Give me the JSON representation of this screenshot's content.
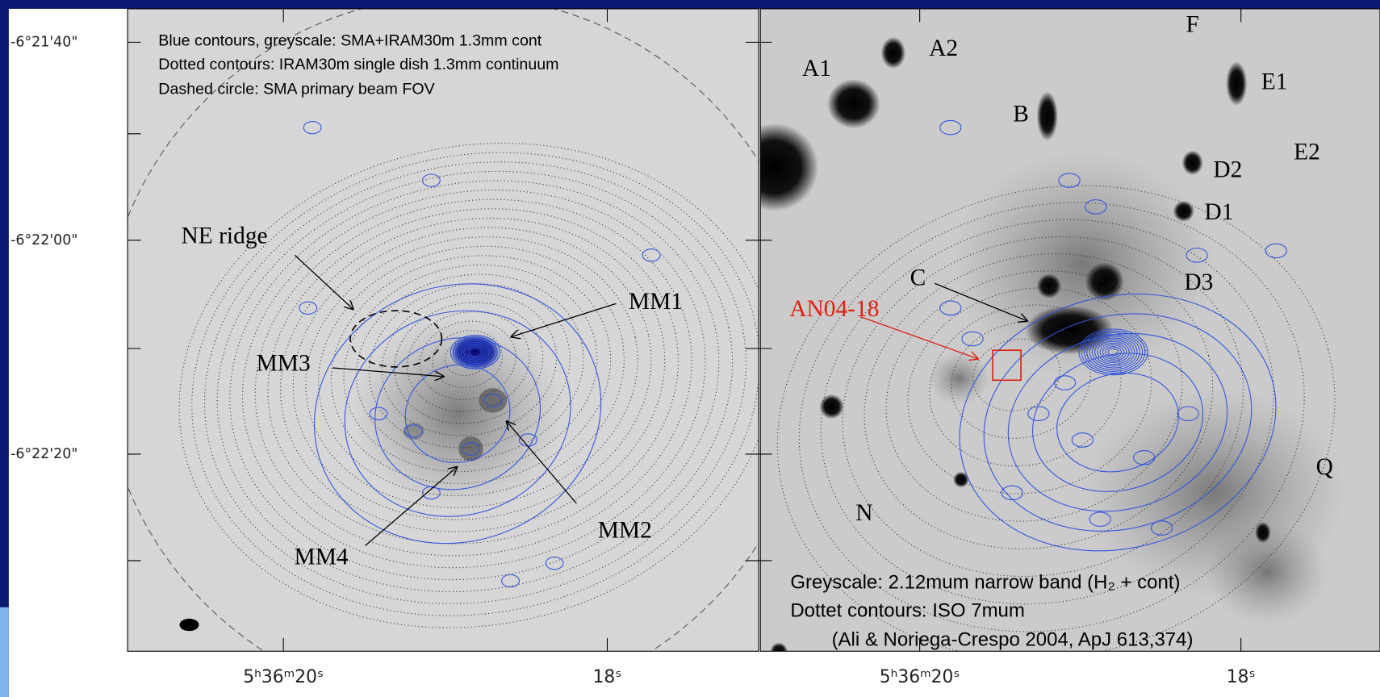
{
  "axes": {
    "y_tick_labels": [
      "-6°21'40\"",
      "-6°22'00\"",
      "-6°22'20\""
    ],
    "x_tick_labels_left": [
      "5ʰ36ᵐ20ˢ",
      "18ˢ"
    ],
    "x_tick_labels_right": [
      "5ʰ36ᵐ20ˢ",
      "18ˢ"
    ]
  },
  "left_panel": {
    "legend": [
      "Blue contours, greyscale: SMA+IRAM30m 1.3mm cont",
      "Dotted contours: IRAM30m single dish 1.3mm continuum",
      "Dashed circle: SMA primary beam FOV"
    ],
    "labels": [
      "NE ridge",
      "MM1",
      "MM3",
      "MM2",
      "MM4"
    ]
  },
  "right_panel": {
    "labels": [
      "A1",
      "A2",
      "F",
      "E1",
      "E2",
      "B",
      "D2",
      "D1",
      "C",
      "D3",
      "AN04-18",
      "N",
      "Q"
    ],
    "caption": [
      "Greyscale: 2.12mum narrow band (H₂ + cont)",
      "Dottet contours: ISO 7mum",
      "(Ali & Noriega-Crespo 2004, ApJ 613,374)"
    ]
  }
}
